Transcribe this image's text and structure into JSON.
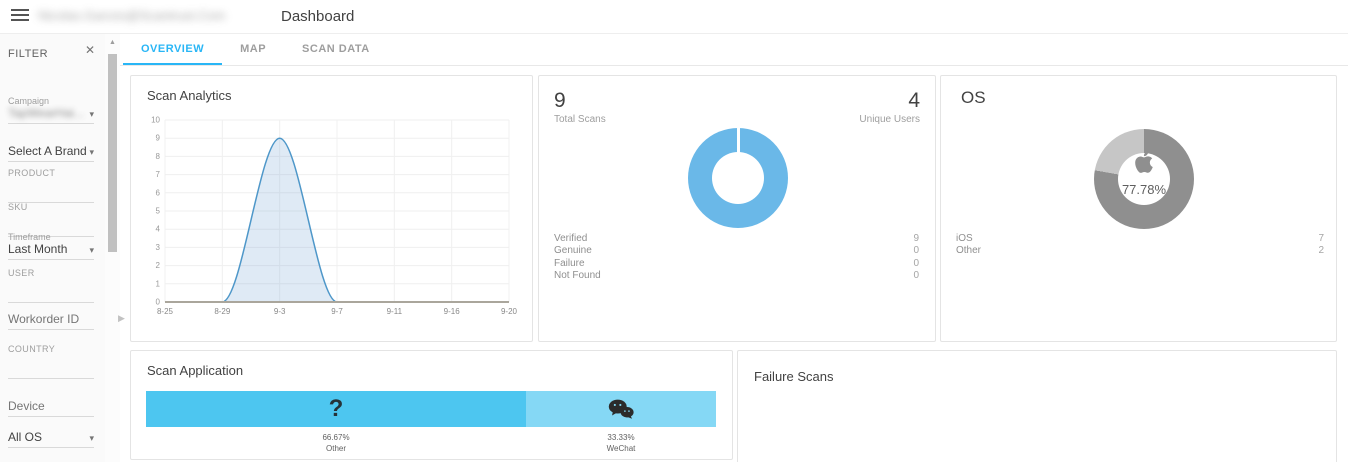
{
  "theme": {
    "accent": "#29b6f6"
  },
  "header": {
    "user_email": "Nicolas.Garces@Scantrust.Com",
    "title": "Dashboard"
  },
  "tabs": {
    "items": [
      {
        "label": "OVERVIEW",
        "active": true
      },
      {
        "label": "MAP",
        "active": false
      },
      {
        "label": "SCAN DATA",
        "active": false
      }
    ]
  },
  "sidebar": {
    "title": "FILTER",
    "fields": [
      {
        "type": "select",
        "label": "Campaign",
        "value": "TapWearHai...",
        "redacted": true
      },
      {
        "type": "select",
        "label": "",
        "value": "Select A Brand"
      },
      {
        "type": "input",
        "label": "PRODUCT",
        "value": ""
      },
      {
        "type": "input",
        "label": "SKU",
        "value": ""
      },
      {
        "type": "select",
        "label": "Timeframe",
        "value": "Last Month"
      },
      {
        "type": "input",
        "label": "USER",
        "value": ""
      },
      {
        "type": "input",
        "label": "",
        "placeholder": "Workorder ID"
      },
      {
        "type": "input",
        "label": "COUNTRY",
        "value": ""
      },
      {
        "type": "input",
        "label": "",
        "placeholder": "Device"
      },
      {
        "type": "select",
        "label": "",
        "value": "All OS"
      }
    ]
  },
  "cards": {
    "scan_analytics": {
      "title": "Scan Analytics"
    },
    "total_scans": {
      "value": "9",
      "label": "Total Scans",
      "unique_value": "4",
      "unique_label": "Unique Users",
      "legend": [
        {
          "label": "Verified",
          "value": "9"
        },
        {
          "label": "Genuine",
          "value": "0"
        },
        {
          "label": "Failure",
          "value": "0"
        },
        {
          "label": "Not Found",
          "value": "0"
        }
      ]
    },
    "os": {
      "title": "OS",
      "center_percent": "77.78%",
      "legend": [
        {
          "label": "iOS",
          "value": "7"
        },
        {
          "label": "Other",
          "value": "2"
        }
      ]
    },
    "scan_application": {
      "title": "Scan Application",
      "segments": [
        {
          "label": "Other",
          "percent": 66.67,
          "percent_label": "66.67%",
          "color": "#4dc6f0",
          "icon": "question-mark-icon"
        },
        {
          "label": "WeChat",
          "percent": 33.33,
          "percent_label": "33.33%",
          "color": "#85d8f5",
          "icon": "wechat-icon"
        }
      ]
    },
    "failure_scans": {
      "title": "Failure Scans"
    }
  },
  "chart_data": [
    {
      "type": "area",
      "title": "Scan Analytics",
      "x": [
        "8-25",
        "8-29",
        "9-3",
        "9-7",
        "9-11",
        "9-16",
        "9-20"
      ],
      "values": [
        0,
        0,
        9,
        0,
        0,
        0,
        0
      ],
      "ylim": [
        0,
        10
      ],
      "ytick_step": 1,
      "grid": true,
      "smooth": true,
      "line_color": "#4e97c9",
      "fill_color": "rgba(110,160,210,0.22)",
      "baseline_color": "#aaa69c"
    },
    {
      "type": "donut",
      "title": "Total Scans",
      "slices": [
        {
          "label": "Scans",
          "value": 9,
          "color": "#6ab8e8"
        }
      ]
    },
    {
      "type": "donut",
      "title": "OS",
      "center_label": "77.78%",
      "slices": [
        {
          "label": "iOS",
          "value": 7,
          "color": "#8f8f8f"
        },
        {
          "label": "Other",
          "value": 2,
          "color": "#c6c6c6"
        }
      ]
    },
    {
      "type": "bar",
      "title": "Scan Application",
      "categories": [
        "Other",
        "WeChat"
      ],
      "values": [
        66.67,
        33.33
      ],
      "unit": "%"
    }
  ]
}
